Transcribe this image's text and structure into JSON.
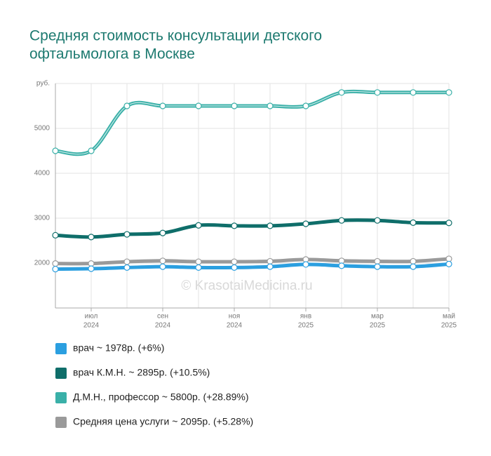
{
  "chart_data": {
    "type": "line",
    "title": [
      "Средняя стоимость консультации детского",
      "офтальмолога в Москве"
    ],
    "watermark": "© KrasotaiMedicina.ru",
    "categories": [
      null,
      "июл",
      null,
      "сен",
      null,
      "ноя",
      null,
      "янв",
      null,
      "мар",
      null,
      "май"
    ],
    "category_years": [
      null,
      "2024",
      null,
      "2024",
      null,
      "2024",
      null,
      "2025",
      null,
      "2025",
      null,
      "2025"
    ],
    "ylim": [
      1000,
      6000
    ],
    "yticks": [
      2000,
      3000,
      4000,
      5000,
      {
        "value": 6000,
        "label": "руб."
      }
    ],
    "grid": true,
    "series": [
      {
        "name": "врач ~ 1978р. (+6%)",
        "color": "#2b9fe0",
        "values": [
          1866,
          1875,
          1900,
          1920,
          1900,
          1900,
          1920,
          1970,
          1940,
          1920,
          1920,
          1978
        ]
      },
      {
        "name": "врач К.М.Н. ~ 2895р. (+10.5%)",
        "color": "#0f6e6a",
        "values": [
          2620,
          2580,
          2640,
          2670,
          2840,
          2830,
          2830,
          2875,
          2950,
          2950,
          2900,
          2895
        ]
      },
      {
        "name": "Д.М.Н., профессор ~ 5800р. (+28.89%)",
        "color": "#3ab0a8",
        "values": [
          4500,
          4500,
          5500,
          5500,
          5500,
          5500,
          5500,
          5500,
          5800,
          5800,
          5800,
          5800
        ]
      },
      {
        "name": "Средняя цена услуги ~ 2095р. (+5.28%)",
        "color": "#9a9a9a",
        "values": [
          1990,
          1990,
          2030,
          2050,
          2030,
          2030,
          2040,
          2080,
          2050,
          2040,
          2040,
          2095
        ]
      }
    ]
  }
}
